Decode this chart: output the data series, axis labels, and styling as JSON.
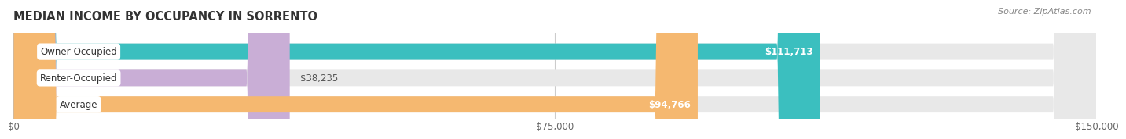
{
  "title": "MEDIAN INCOME BY OCCUPANCY IN SORRENTO",
  "source": "Source: ZipAtlas.com",
  "categories": [
    "Owner-Occupied",
    "Renter-Occupied",
    "Average"
  ],
  "values": [
    111713,
    38235,
    94766
  ],
  "bar_colors": [
    "#3bbfbf",
    "#c9aed6",
    "#f5b870"
  ],
  "bar_labels": [
    "$111,713",
    "$38,235",
    "$94,766"
  ],
  "label_text_colors": [
    "#ffffff",
    "#555555",
    "#ffffff"
  ],
  "label_inside": [
    true,
    false,
    true
  ],
  "xlim": [
    0,
    150000
  ],
  "xticks": [
    0,
    75000,
    150000
  ],
  "xtick_labels": [
    "$0",
    "$75,000",
    "$150,000"
  ],
  "background_color": "#ffffff",
  "bar_bg_color": "#e8e8e8",
  "title_fontsize": 10.5,
  "label_fontsize": 8.5,
  "value_fontsize": 8.5,
  "source_fontsize": 8
}
